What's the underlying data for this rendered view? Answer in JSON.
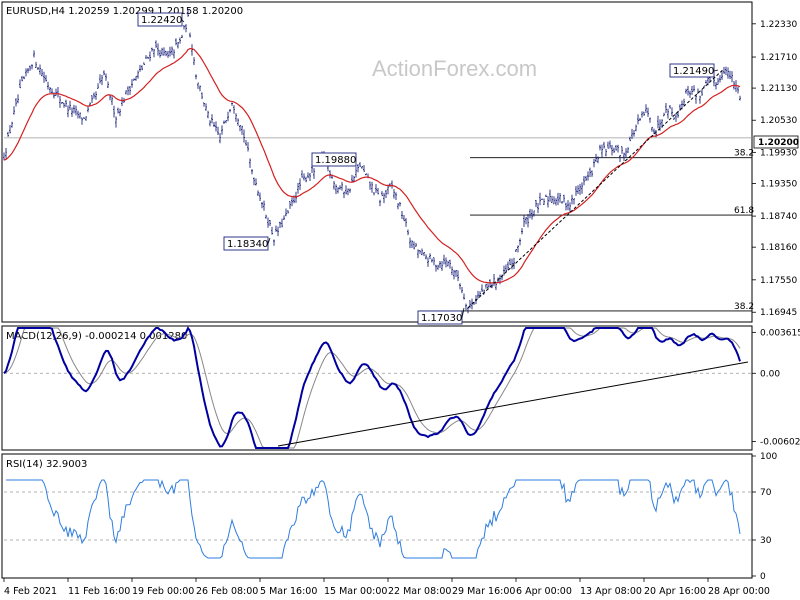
{
  "chart_data": {
    "type": "candlestick",
    "watermark": "ActionForex.com",
    "colors": {
      "bars": "#1a237e",
      "ma": "#d42020",
      "macd": "#0000a0",
      "signal": "#888888",
      "rsi": "#2f7de1",
      "trend": "#000000",
      "fib": "#000000",
      "levelDash": "#9a9a9a",
      "indicatorBox": "#000000"
    },
    "price_panel": {
      "header": "EURUSD,H4  1.20259 1.20299 1.20158 1.20200",
      "symbol": "EURUSD",
      "timeframe": "H4",
      "ohlc": [
        1.20259,
        1.20299,
        1.20158,
        1.202
      ],
      "ylim": [
        1.168,
        1.227
      ],
      "yticks": [
        "1.22330",
        "1.21710",
        "1.21130",
        "1.20530",
        "1.19930",
        "1.19350",
        "1.18740",
        "1.18160",
        "1.17550",
        "1.16945"
      ],
      "current_price": "1.20200",
      "moving_average": "red line",
      "annotations": [
        {
          "label": "1.22420",
          "price": 1.2242
        },
        {
          "label": "1.18340",
          "price": 1.1834
        },
        {
          "label": "1.19880",
          "price": 1.1988
        },
        {
          "label": "1.17030",
          "price": 1.1703
        },
        {
          "label": "1.21490",
          "price": 1.2149
        }
      ],
      "fib_levels": [
        {
          "label": "38.2",
          "price": 1.1983
        },
        {
          "label": "61.8",
          "price": 1.1876
        },
        {
          "label": "38.2",
          "price": 1.1697
        }
      ],
      "trendline": "support line from 1.17030 low to 1.21490 high"
    },
    "macd_panel": {
      "header": "MACD(12,26,9) -0.000214 0.001280",
      "params": [
        12,
        26,
        9
      ],
      "values": [
        -0.000214,
        0.00128
      ],
      "ylim": [
        -0.0066,
        0.004
      ],
      "yticks": [
        "0.003615",
        "0.00",
        "-0.006026"
      ],
      "trendline": "rising support line"
    },
    "rsi_panel": {
      "header": "RSI(14) 32.9003",
      "period": 14,
      "value": 32.9003,
      "ylim": [
        0,
        100
      ],
      "yticks": [
        "100",
        "70",
        "30",
        "0"
      ],
      "levels": [
        70,
        30
      ]
    },
    "x_labels": [
      "4 Feb 2021",
      "11 Feb 16:00",
      "19 Feb 00:00",
      "26 Feb 08:00",
      "5 Mar 16:00",
      "15 Mar 00:00",
      "22 Mar 08:00",
      "29 Mar 16:00",
      "6 Apr 00:00",
      "13 Apr 08:00",
      "20 Apr 16:00",
      "28 Apr 00:00"
    ],
    "swing_path": [
      [
        0,
        1.1985
      ],
      [
        8,
        1.205
      ],
      [
        18,
        1.212
      ],
      [
        30,
        1.217
      ],
      [
        44,
        1.212
      ],
      [
        62,
        1.208
      ],
      [
        80,
        1.2055
      ],
      [
        92,
        1.21
      ],
      [
        100,
        1.214
      ],
      [
        112,
        1.206
      ],
      [
        124,
        1.211
      ],
      [
        138,
        1.215
      ],
      [
        150,
        1.219
      ],
      [
        164,
        1.217
      ],
      [
        176,
        1.22
      ],
      [
        184,
        1.2242
      ],
      [
        192,
        1.214
      ],
      [
        204,
        1.206
      ],
      [
        216,
        1.202
      ],
      [
        228,
        1.209
      ],
      [
        238,
        1.204
      ],
      [
        248,
        1.196
      ],
      [
        258,
        1.19
      ],
      [
        270,
        1.1834
      ],
      [
        284,
        1.188
      ],
      [
        298,
        1.194
      ],
      [
        310,
        1.196
      ],
      [
        320,
        1.1988
      ],
      [
        332,
        1.193
      ],
      [
        344,
        1.192
      ],
      [
        356,
        1.197
      ],
      [
        364,
        1.194
      ],
      [
        376,
        1.1905
      ],
      [
        388,
        1.193
      ],
      [
        398,
        1.188
      ],
      [
        408,
        1.182
      ],
      [
        420,
        1.18
      ],
      [
        432,
        1.1785
      ],
      [
        444,
        1.179
      ],
      [
        454,
        1.176
      ],
      [
        464,
        1.1703
      ],
      [
        474,
        1.1725
      ],
      [
        486,
        1.1745
      ],
      [
        498,
        1.176
      ],
      [
        510,
        1.179
      ],
      [
        520,
        1.186
      ],
      [
        532,
        1.189
      ],
      [
        546,
        1.191
      ],
      [
        556,
        1.1905
      ],
      [
        566,
        1.1895
      ],
      [
        576,
        1.193
      ],
      [
        586,
        1.195
      ],
      [
        596,
        1.1995
      ],
      [
        608,
        1.2
      ],
      [
        620,
        1.199
      ],
      [
        632,
        1.204
      ],
      [
        642,
        1.207
      ],
      [
        652,
        1.203
      ],
      [
        662,
        1.208
      ],
      [
        672,
        1.206
      ],
      [
        684,
        1.211
      ],
      [
        696,
        1.21
      ],
      [
        706,
        1.213
      ],
      [
        714,
        1.2125
      ],
      [
        720,
        1.2149
      ],
      [
        728,
        1.213
      ],
      [
        736,
        1.21
      ],
      [
        740,
        1.202
      ]
    ]
  }
}
